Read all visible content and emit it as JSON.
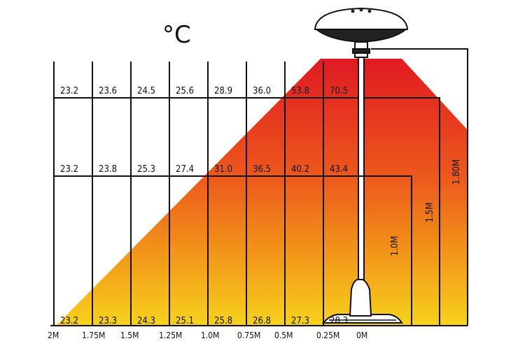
{
  "unit": "°C",
  "x_labels": [
    "2M",
    "1.75M",
    "1.5M",
    "1.25M",
    "1.0M",
    "0.75M",
    "0.5M",
    "0.25M",
    "0M"
  ],
  "rows": [
    {
      "values": [
        "23.2",
        "23.6",
        "24.5",
        "25.6",
        "28.9",
        "36.0",
        "53.8",
        "70.5"
      ]
    },
    {
      "values": [
        "23.2",
        "23.8",
        "25.3",
        "27.4",
        "31.0",
        "36.5",
        "40.2",
        "43.4"
      ]
    },
    {
      "values": [
        "23.2",
        "23.3",
        "24.3",
        "25.1",
        "25.8",
        "26.8",
        "27.3",
        "28.3"
      ]
    }
  ],
  "heights": [
    "1.80M",
    "1.5M",
    "1.0M"
  ],
  "colors": {
    "hot": "#e01a23",
    "mid": "#ef7a1a",
    "cool": "#f7d21c"
  }
}
